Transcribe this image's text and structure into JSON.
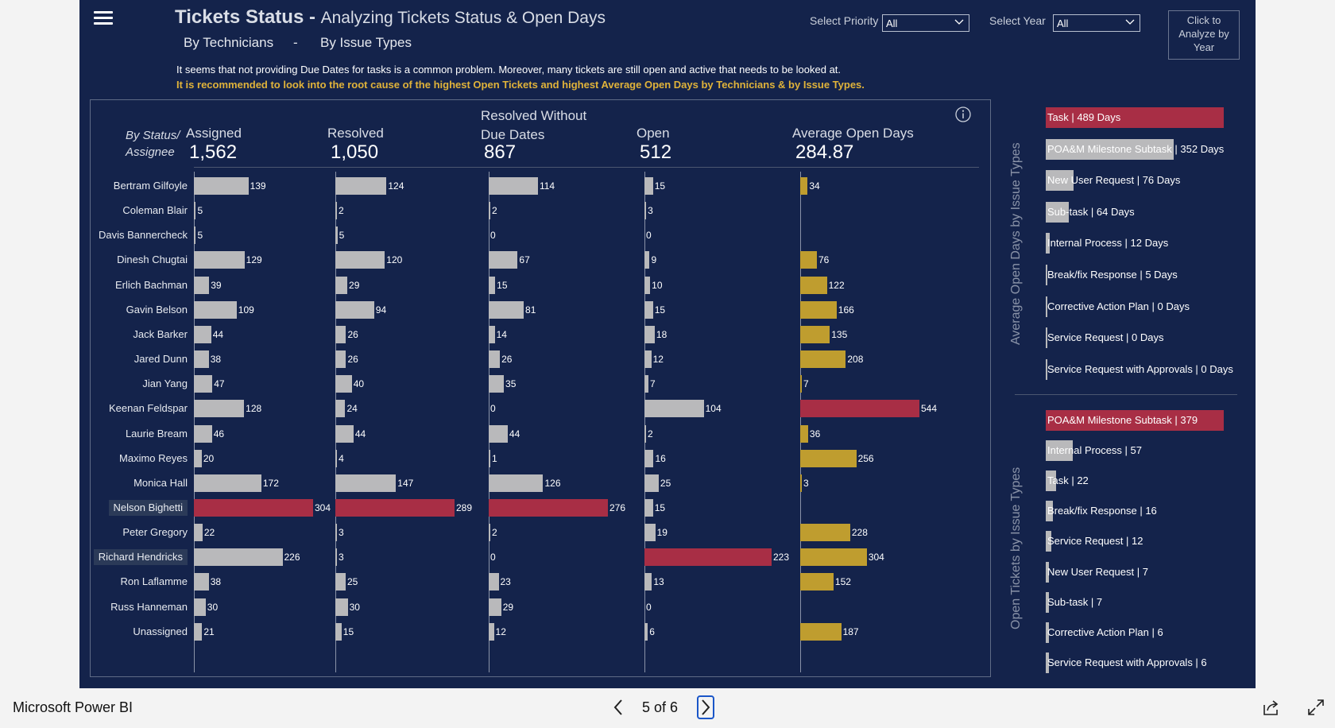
{
  "header": {
    "title_main": "Tickets Status -",
    "title_sub": "Analyzing Tickets Status & Open Days",
    "nav_by_technicians": "By Technicians",
    "nav_separator": "-",
    "nav_by_issue_types": "By Issue Types",
    "description": "It seems that not providing Due Dates for tasks is a common problem. Moreover, many tickets are still open and active that needs to be looked at.",
    "recommendation": "It is recommended to look into the root cause of the highest Open Tickets and highest Average Open Days by Technicians & by Issue Types."
  },
  "filters": {
    "priority_label": "Select Priority",
    "priority_value": "All",
    "year_label": "Select Year",
    "year_value": "All",
    "analyze_button": "Click to Analyze by Year"
  },
  "table": {
    "row_header_line1": "By Status/",
    "row_header_line2": "Assignee",
    "columns": [
      {
        "label_line1": "Assigned",
        "label_line2": "",
        "total": "1,562",
        "max": 304
      },
      {
        "label_line1": "Resolved",
        "label_line2": "",
        "total": "1,050",
        "max": 289
      },
      {
        "label_line1": "Resolved Without",
        "label_line2": "Due Dates",
        "total": "867",
        "max": 276
      },
      {
        "label_line1": "Open",
        "label_line2": "",
        "total": "512",
        "max": 223
      },
      {
        "label_line1": "Average Open Days",
        "label_line2": "",
        "total": "284.87",
        "max": 544
      }
    ],
    "rows": [
      {
        "name": "Bertram Gilfoyle",
        "values": [
          139,
          124,
          114,
          15,
          34
        ]
      },
      {
        "name": "Coleman Blair",
        "values": [
          5,
          2,
          2,
          3,
          null
        ]
      },
      {
        "name": "Davis Bannercheck",
        "values": [
          5,
          5,
          0,
          0,
          null
        ]
      },
      {
        "name": "Dinesh Chugtai",
        "values": [
          129,
          120,
          67,
          9,
          76
        ]
      },
      {
        "name": "Erlich Bachman",
        "values": [
          39,
          29,
          15,
          10,
          122
        ]
      },
      {
        "name": "Gavin Belson",
        "values": [
          109,
          94,
          81,
          15,
          166
        ]
      },
      {
        "name": "Jack Barker",
        "values": [
          44,
          26,
          14,
          18,
          135
        ]
      },
      {
        "name": "Jared Dunn",
        "values": [
          38,
          26,
          26,
          12,
          208
        ]
      },
      {
        "name": "Jian Yang",
        "values": [
          47,
          40,
          35,
          7,
          7
        ]
      },
      {
        "name": "Keenan Feldspar",
        "values": [
          128,
          24,
          0,
          104,
          544
        ]
      },
      {
        "name": "Laurie Bream",
        "values": [
          46,
          44,
          44,
          2,
          36
        ]
      },
      {
        "name": "Maximo Reyes",
        "values": [
          20,
          4,
          1,
          16,
          256
        ]
      },
      {
        "name": "Monica Hall",
        "values": [
          172,
          147,
          126,
          25,
          3
        ]
      },
      {
        "name": "Nelson Bighetti",
        "values": [
          304,
          289,
          276,
          15,
          null
        ],
        "highlight": true
      },
      {
        "name": "Peter Gregory",
        "values": [
          22,
          3,
          2,
          19,
          228
        ]
      },
      {
        "name": "Richard Hendricks",
        "values": [
          226,
          3,
          0,
          223,
          304
        ],
        "highlight": true
      },
      {
        "name": "Ron Laflamme",
        "values": [
          38,
          25,
          23,
          13,
          152
        ]
      },
      {
        "name": "Russ Hanneman",
        "values": [
          30,
          30,
          29,
          0,
          null
        ]
      },
      {
        "name": "Unassigned",
        "values": [
          21,
          15,
          12,
          6,
          187
        ]
      }
    ]
  },
  "avg_open_days_by_issue": {
    "title": "Average Open Days by Issue Types",
    "max": 489,
    "items": [
      {
        "label": "Task | 489 Days",
        "value": 489
      },
      {
        "label": "POA&M Milestone Subtask | 352 Days",
        "value": 352
      },
      {
        "label": "New User Request | 76 Days",
        "value": 76
      },
      {
        "label": "Sub-task | 64 Days",
        "value": 64
      },
      {
        "label": "Internal Process | 12 Days",
        "value": 12
      },
      {
        "label": "Break/fix Response | 5 Days",
        "value": 5
      },
      {
        "label": "Corrective Action Plan | 0 Days",
        "value": 0
      },
      {
        "label": "Service Request | 0 Days",
        "value": 0
      },
      {
        "label": "Service Request with Approvals | 0 Days",
        "value": 0
      }
    ]
  },
  "open_tickets_by_issue": {
    "title": "Open Tickets by Issue Types",
    "max": 379,
    "items": [
      {
        "label": "POA&M Milestone Subtask | 379",
        "value": 379
      },
      {
        "label": "Internal Process | 57",
        "value": 57
      },
      {
        "label": "Task | 22",
        "value": 22
      },
      {
        "label": "Break/fix Response | 16",
        "value": 16
      },
      {
        "label": "Service Request | 12",
        "value": 12
      },
      {
        "label": "New User Request | 7",
        "value": 7
      },
      {
        "label": "Sub-task | 7",
        "value": 7
      },
      {
        "label": "Corrective Action Plan | 6",
        "value": 6
      },
      {
        "label": "Service Request with Approvals | 6",
        "value": 6
      }
    ]
  },
  "colors": {
    "background": "#14234b",
    "bar_default": "#b9b9bb",
    "bar_highlight": "#a82e45",
    "bar_avg_days": "#bf9d2f",
    "recommendation_text": "#e0b33a"
  },
  "taskbar": {
    "app_name": "Microsoft Power BI",
    "page_indicator": "5 of 6",
    "icons": [
      "chevron-left-icon",
      "chevron-right-icon",
      "share-icon",
      "expand-icon"
    ]
  }
}
